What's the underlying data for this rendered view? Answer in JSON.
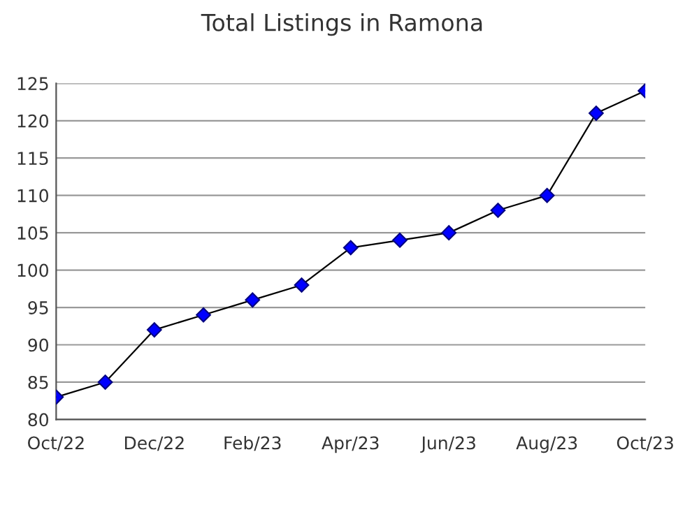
{
  "chart_data": {
    "type": "line",
    "title": "Total Listings in Ramona",
    "categories": [
      "Oct/22",
      null,
      "Dec/22",
      null,
      "Feb/23",
      null,
      "Apr/23",
      null,
      "Jun/23",
      null,
      "Aug/23",
      null,
      "Oct/23"
    ],
    "series": [
      {
        "color": "#0000ff",
        "values": [
          83,
          85,
          92,
          94,
          96,
          98,
          103,
          104,
          105,
          108,
          110,
          121,
          124
        ]
      }
    ],
    "ylim": [
      80,
      125
    ],
    "yticks": [
      80,
      85,
      90,
      95,
      100,
      105,
      110,
      115,
      120,
      125
    ],
    "grid": "y",
    "marker": "diamond",
    "line_style": "solid",
    "legend": false
  }
}
